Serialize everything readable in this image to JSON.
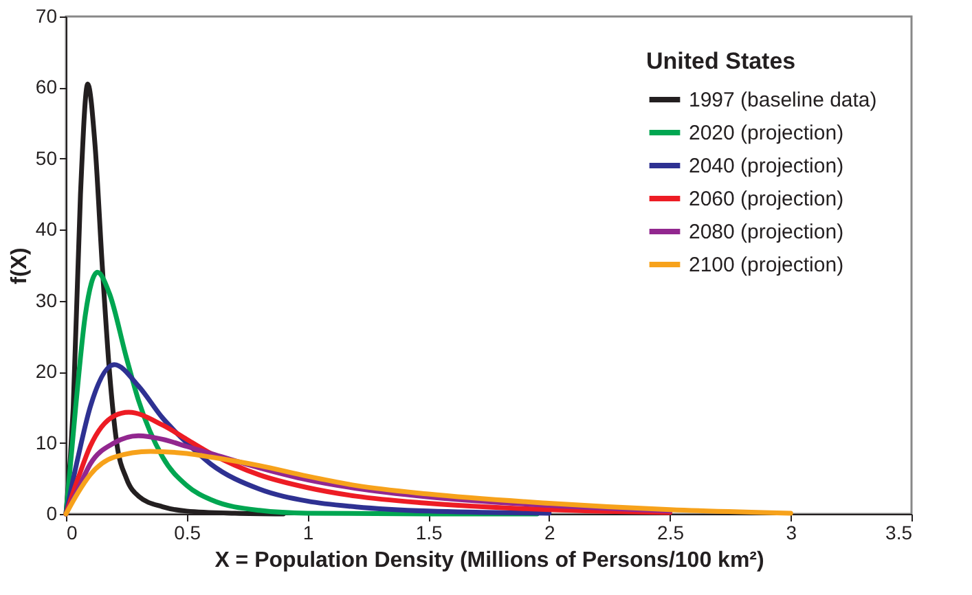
{
  "chart_data": {
    "type": "line",
    "xlabel": "X = Population Density (Millions of Persons/100 km²)",
    "ylabel": "f(X)",
    "legend_title": "United States",
    "legend": "top right",
    "grid": false,
    "marker": "none",
    "line_style": "solid",
    "xlim": [
      0,
      3.5
    ],
    "xticks": [
      0,
      0.5,
      1,
      1.5,
      2,
      2.5,
      3,
      3.5
    ],
    "ylim": [
      0,
      70
    ],
    "yticks": [
      0,
      10,
      20,
      30,
      40,
      50,
      60,
      70
    ],
    "series": [
      {
        "name": "1997 (baseline data)",
        "color": "#231f20",
        "x": [
          0,
          0.03,
          0.06,
          0.09,
          0.12,
          0.15,
          0.18,
          0.21,
          0.25,
          0.3,
          0.4,
          0.5,
          0.7,
          0.9
        ],
        "values": [
          0,
          15,
          45,
          60.5,
          52,
          35,
          20,
          10,
          5,
          2.5,
          1,
          0.4,
          0.1,
          0
        ]
      },
      {
        "name": "2020 (projection)",
        "color": "#00a651",
        "x": [
          0,
          0.04,
          0.08,
          0.13,
          0.18,
          0.25,
          0.3,
          0.4,
          0.5,
          0.6,
          0.8,
          1,
          1.5,
          1.95
        ],
        "values": [
          0,
          15,
          28,
          34,
          31,
          22,
          16,
          8,
          4,
          2,
          0.5,
          0.1,
          0,
          0
        ]
      },
      {
        "name": "2040 (projection)",
        "color": "#2e3192",
        "x": [
          0,
          0.05,
          0.1,
          0.2,
          0.3,
          0.4,
          0.5,
          0.6,
          0.8,
          1,
          1.2,
          1.5,
          2
        ],
        "values": [
          0,
          8,
          15,
          21,
          18,
          13.5,
          10,
          7,
          3.5,
          1.8,
          1,
          0.4,
          0.1
        ]
      },
      {
        "name": "2060 (projection)",
        "color": "#ed1c24",
        "x": [
          0,
          0.05,
          0.1,
          0.2,
          0.26,
          0.4,
          0.5,
          0.6,
          0.8,
          1,
          1.2,
          1.5,
          2,
          2.5
        ],
        "values": [
          0,
          5,
          9.5,
          13.8,
          14.3,
          12.5,
          10.5,
          8.5,
          5.5,
          3.7,
          2.5,
          1.5,
          0.6,
          0.2
        ]
      },
      {
        "name": "2080 (projection)",
        "color": "#92278f",
        "x": [
          0,
          0.05,
          0.1,
          0.2,
          0.3,
          0.4,
          0.5,
          0.6,
          0.8,
          1,
          1.2,
          1.5,
          2,
          2.5
        ],
        "values": [
          0,
          3.5,
          7,
          10,
          11,
          10.5,
          9.5,
          8.5,
          6.5,
          4.8,
          3.6,
          2.4,
          1.2,
          0.4
        ]
      },
      {
        "name": "2100 (projection)",
        "color": "#f7a21b",
        "x": [
          0,
          0.05,
          0.1,
          0.2,
          0.35,
          0.5,
          0.6,
          0.8,
          1,
          1.2,
          1.5,
          2,
          2.5,
          3
        ],
        "values": [
          0,
          3,
          5.5,
          8,
          8.8,
          8.5,
          8,
          6.8,
          5.3,
          4,
          2.8,
          1.5,
          0.6,
          0.1
        ]
      }
    ]
  }
}
